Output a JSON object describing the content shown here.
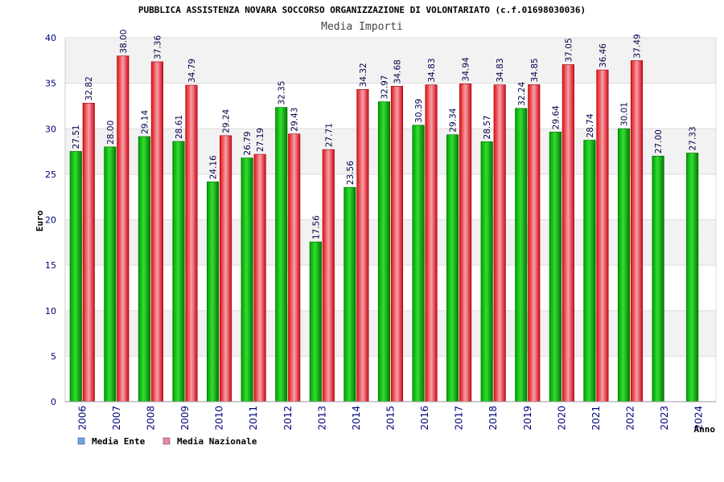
{
  "chart_data": {
    "type": "bar",
    "title": "PUBBLICA ASSISTENZA NOVARA SOCCORSO ORGANIZZAZIONE DI VOLONTARIATO (c.f.01698030036)",
    "subtitle": "Media Importi",
    "xlabel": "Anno",
    "ylabel": "Euro",
    "ylim": [
      0,
      40
    ],
    "yticks": [
      0,
      5,
      10,
      15,
      20,
      25,
      30,
      35,
      40
    ],
    "grid": true,
    "legend_position": "bottom-left",
    "categories": [
      "2006",
      "2007",
      "2008",
      "2009",
      "2010",
      "2011",
      "2012",
      "2013",
      "2014",
      "2015",
      "2016",
      "2017",
      "2018",
      "2019",
      "2020",
      "2021",
      "2022",
      "2023",
      "2024"
    ],
    "series": [
      {
        "name": "Media Ente",
        "color": "#00b000",
        "legend_color": "#6fa8e8",
        "values": [
          27.51,
          28.0,
          29.14,
          28.61,
          24.16,
          26.79,
          32.35,
          17.56,
          23.56,
          32.97,
          30.39,
          29.34,
          28.57,
          32.24,
          29.64,
          28.74,
          30.01,
          27.0,
          27.33
        ],
        "labels": [
          "27.51",
          "28.00",
          "29.14",
          "28.61",
          "24.16",
          "26.79",
          "32.35",
          "17.56",
          "23.56",
          "32.97",
          "30.39",
          "29.34",
          "28.57",
          "32.24",
          "29.64",
          "28.74",
          "30.01",
          "27.00",
          "27.33"
        ]
      },
      {
        "name": "Media Nazionale",
        "color": "#e81010",
        "legend_color": "#e88aa8",
        "values": [
          32.82,
          38.0,
          37.36,
          34.79,
          29.24,
          27.19,
          29.43,
          27.71,
          34.32,
          34.68,
          34.83,
          34.94,
          34.83,
          34.85,
          37.05,
          36.46,
          37.49,
          null,
          null
        ],
        "labels": [
          "32.82",
          "38.00",
          "37.36",
          "34.79",
          "29.24",
          "27.19",
          "29.43",
          "27.71",
          "34.32",
          "34.68",
          "34.83",
          "34.94",
          "34.83",
          "34.85",
          "37.05",
          "36.46",
          "37.49",
          "",
          ""
        ]
      }
    ]
  }
}
